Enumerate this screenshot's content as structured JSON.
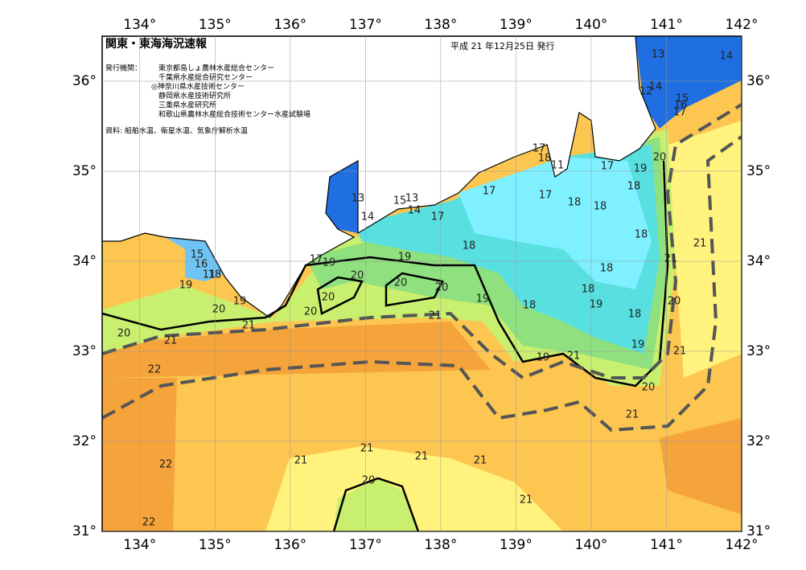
{
  "map": {
    "title": "関東・東海海況速報",
    "date": "平成 21 年12月25日 発行",
    "issuer_label": "発行機関：",
    "issuers": [
      "東京都島しょ農林水産総合センター",
      "千葉県水産総合研究センター",
      "◎神奈川県水産技術センター",
      "静岡県水産技術研究所",
      "三重県水産研究所",
      "和歌山県農林水産総合技術センター水産試験場"
    ],
    "source": "資料: 船舶水温、衛星水温、気象庁解析水温",
    "xlim": [
      133.5,
      142
    ],
    "ylim": [
      31,
      36.5
    ],
    "xticks": [
      {
        "value": 134,
        "label": "134°"
      },
      {
        "value": 135,
        "label": "135°"
      },
      {
        "value": 136,
        "label": "136°"
      },
      {
        "value": 137,
        "label": "137°"
      },
      {
        "value": 138,
        "label": "138°"
      },
      {
        "value": 139,
        "label": "139°"
      },
      {
        "value": 140,
        "label": "140°"
      },
      {
        "value": 141,
        "label": "141°"
      },
      {
        "value": 142,
        "label": "142°"
      }
    ],
    "yticks": [
      {
        "value": 31,
        "label": "31°"
      },
      {
        "value": 32,
        "label": "32°"
      },
      {
        "value": 33,
        "label": "33°"
      },
      {
        "value": 34,
        "label": "34°"
      },
      {
        "value": 35,
        "label": "35°"
      },
      {
        "value": 36,
        "label": "36°"
      }
    ],
    "contour_labels": [
      13,
      14,
      14,
      12,
      15,
      16,
      17,
      17,
      18,
      11,
      17,
      19,
      20,
      18,
      17,
      17,
      18,
      18,
      13,
      14,
      15,
      13,
      14,
      17,
      18,
      21,
      18,
      19,
      17,
      19,
      21,
      15,
      16,
      11,
      18,
      20,
      20,
      20,
      18,
      19,
      18,
      20,
      19,
      19,
      20,
      20,
      18,
      19,
      20,
      21,
      18,
      21,
      20,
      21,
      19,
      21,
      19,
      21,
      22,
      20,
      21,
      21,
      21,
      21,
      21,
      22,
      20,
      21,
      22
    ]
  }
}
